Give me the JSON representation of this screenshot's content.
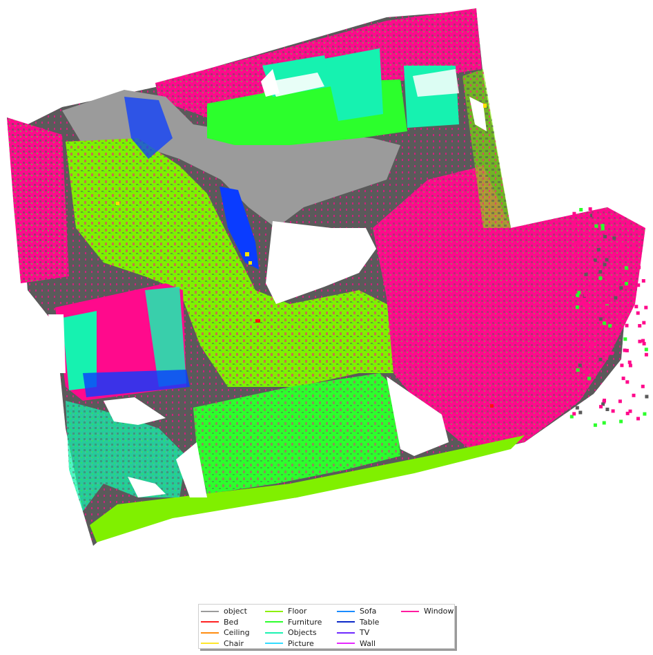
{
  "scene": {
    "view": "top-down semantic point cloud of a room",
    "segment_colors": {
      "object": "#9b9b9b",
      "unlabeled": "#5a5a5a",
      "Floor": "#80f000",
      "Furniture": "#2cff2c",
      "Objects": "#16f2b0",
      "Table": "#0a3cff",
      "Window": "#ff0a8c",
      "Chair": "#ffe000",
      "Bed": "#ff1010"
    }
  },
  "legend": {
    "entries": [
      {
        "label": "object",
        "color": "#9b9b9b"
      },
      {
        "label": "Bed",
        "color": "#ff2020"
      },
      {
        "label": "Ceiling",
        "color": "#ff8c10"
      },
      {
        "label": "Chair",
        "color": "#ffe62a"
      },
      {
        "label": "Floor",
        "color": "#8cf000"
      },
      {
        "label": "Furniture",
        "color": "#2cff2c"
      },
      {
        "label": "Objects",
        "color": "#1af2b0"
      },
      {
        "label": "Picture",
        "color": "#32dcff"
      },
      {
        "label": "Sofa",
        "color": "#1a8cff"
      },
      {
        "label": "Table",
        "color": "#0a28c8"
      },
      {
        "label": "TV",
        "color": "#6e28ff"
      },
      {
        "label": "Wall",
        "color": "#e628ff"
      },
      {
        "label": "Window",
        "color": "#ff1aa0"
      }
    ]
  }
}
